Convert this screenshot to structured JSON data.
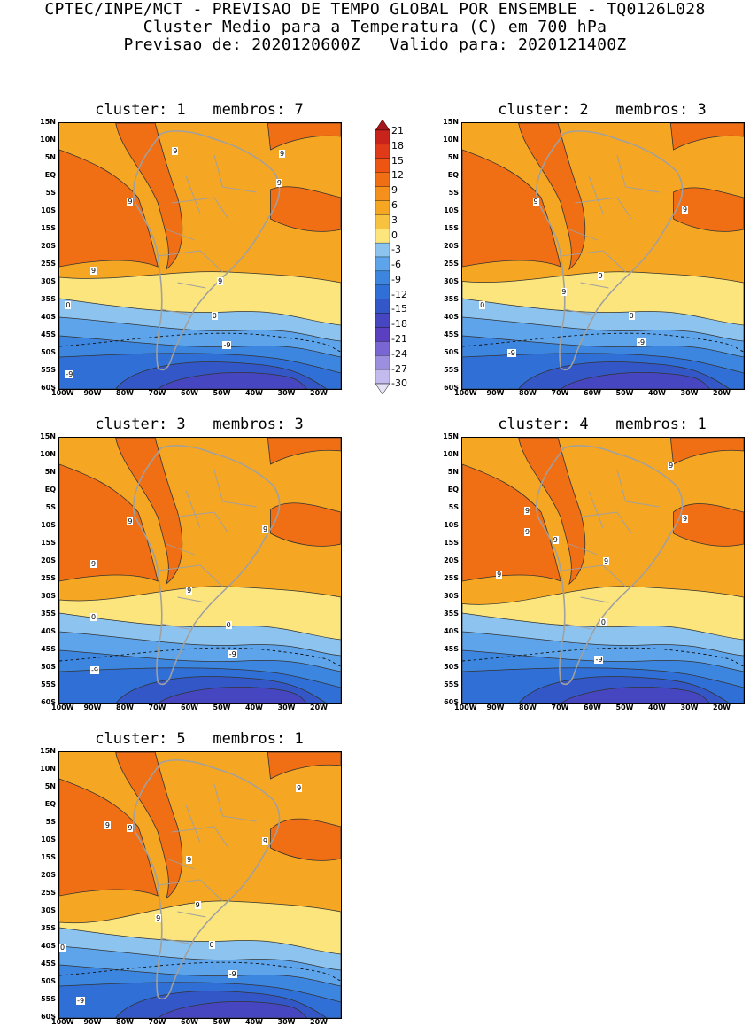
{
  "header": {
    "line1": "CPTEC/INPE/MCT - PREVISAO DE TEMPO GLOBAL POR ENSEMBLE - TQ0126L028",
    "line2": "Cluster Medio para a Temperatura (C) em 700 hPa",
    "line3": "Previsao de: 2020120600Z   Valido para: 2020121400Z"
  },
  "panels": [
    {
      "title": "cluster: 1   membros: 7"
    },
    {
      "title": "cluster: 2   membros: 3"
    },
    {
      "title": "cluster: 3   membros: 3"
    },
    {
      "title": "cluster: 4   membros: 1"
    },
    {
      "title": "cluster: 5   membros: 1"
    }
  ],
  "lat_labels": [
    "15N",
    "10N",
    "5N",
    "EQ",
    "5S",
    "10S",
    "15S",
    "20S",
    "25S",
    "30S",
    "35S",
    "40S",
    "45S",
    "50S",
    "55S",
    "60S"
  ],
  "lon_labels": [
    "100W",
    "90W",
    "80W",
    "70W",
    "60W",
    "50W",
    "40W",
    "30W",
    "20W"
  ],
  "colorbar": {
    "levels": [
      "21",
      "18",
      "15",
      "12",
      "9",
      "6",
      "3",
      "0",
      "-3",
      "-6",
      "-9",
      "-12",
      "-15",
      "-18",
      "-21",
      "-24",
      "-27",
      "-30"
    ],
    "colors": [
      "#a8161a",
      "#c8241c",
      "#e03a18",
      "#ee5512",
      "#f06e14",
      "#f5901c",
      "#f5a623",
      "#f7c240",
      "#fbe57c",
      "#8cc4ef",
      "#5ea4ea",
      "#3c86e0",
      "#2f6fd6",
      "#3457c7",
      "#4746c1",
      "#5a3fc0",
      "#7a66d2",
      "#9d8fe0",
      "#c3bbee",
      "#e6e3f7"
    ]
  },
  "contour_labels": {
    "warm": "9",
    "zero": "0",
    "cold": "-9"
  },
  "colors": {
    "background": "#ffffff",
    "land_outline": "#a0a0a0"
  }
}
